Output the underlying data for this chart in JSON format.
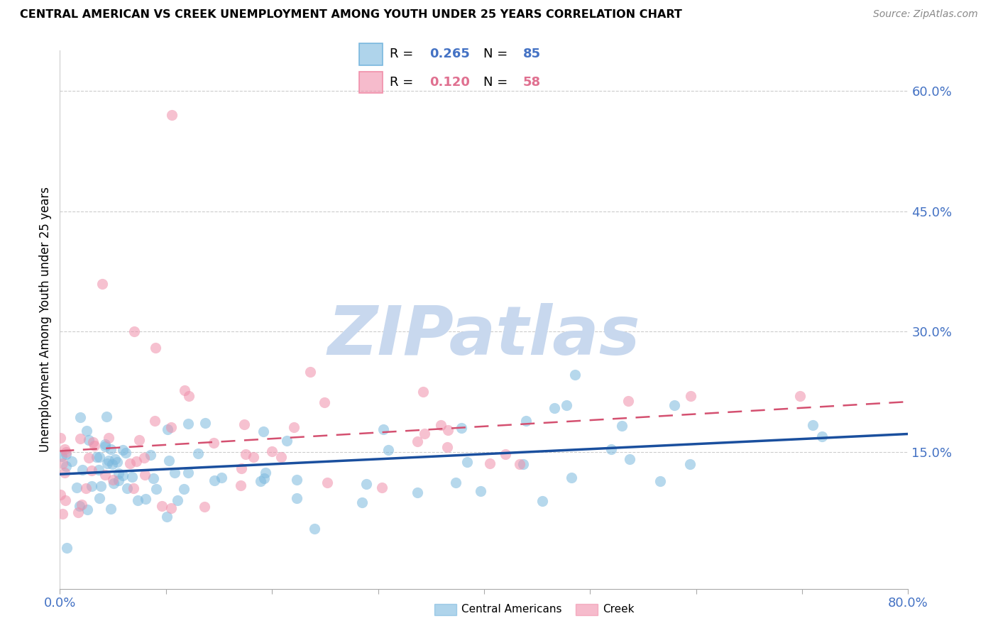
{
  "title": "CENTRAL AMERICAN VS CREEK UNEMPLOYMENT AMONG YOUTH UNDER 25 YEARS CORRELATION CHART",
  "source": "Source: ZipAtlas.com",
  "ylabel": "Unemployment Among Youth under 25 years",
  "xlim": [
    0.0,
    0.8
  ],
  "ylim": [
    -0.02,
    0.65
  ],
  "ytick_labels_right": [
    "15.0%",
    "30.0%",
    "45.0%",
    "60.0%"
  ],
  "ytick_vals_right": [
    0.15,
    0.3,
    0.45,
    0.6
  ],
  "ca_color": "#7ab8de",
  "ca_line_color": "#1a4f9e",
  "creek_color": "#f08faa",
  "creek_line_color": "#d45070",
  "ca_R": 0.265,
  "ca_N": 85,
  "creek_R": 0.12,
  "creek_N": 58,
  "watermark": "ZIPatlas",
  "watermark_color": "#c8d8ee",
  "legend_R_color": "#4472c4",
  "legend_creek_R_color": "#e07090",
  "tick_color": "#4472c4"
}
